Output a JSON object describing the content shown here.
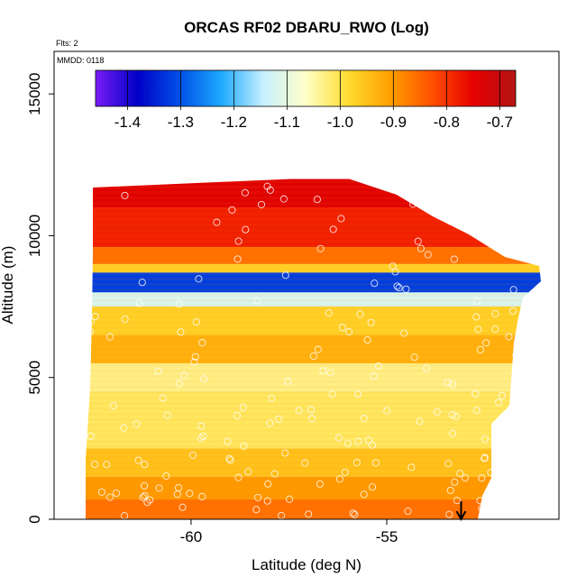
{
  "chart_data": {
    "type": "heatmap",
    "title": "ORCAS RF02 DBARU_RWO (Log)",
    "note_flights": "Flts: 2",
    "note_mmdd": "MMDD: 0118",
    "xlabel": "Latitude (deg N)",
    "ylabel": "Altitude (m)",
    "xlim": [
      -63.5,
      -50.6
    ],
    "ylim": [
      0,
      16500
    ],
    "x_ticks": [
      -60,
      -55
    ],
    "x_tick_labels": [
      "-60",
      "-55"
    ],
    "y_ticks": [
      0,
      5000,
      10000,
      15000
    ],
    "y_tick_labels": [
      "0",
      "5000",
      "10000",
      "15000"
    ],
    "colorbar": {
      "range": [
        -1.46,
        -0.67
      ],
      "ticks": [
        -1.4,
        -1.3,
        -1.2,
        -1.1,
        -1.0,
        -0.9,
        -0.8,
        -0.7
      ],
      "tick_labels": [
        "-1.4",
        "-1.3",
        "-1.2",
        "-1.1",
        "-1.0",
        "-0.9",
        "-0.8",
        "-0.7"
      ],
      "colors": [
        "#7a1cf5",
        "#0000c8",
        "#0050e6",
        "#1eaaff",
        "#c8f0ff",
        "#ffffc8",
        "#ffdc32",
        "#ffa000",
        "#ff5000",
        "#e60000",
        "#b41414"
      ]
    },
    "heatmap_bands": [
      {
        "alt": [
          12000,
          11000
        ],
        "value": -0.74
      },
      {
        "alt": [
          11000,
          9600
        ],
        "value": -0.78
      },
      {
        "alt": [
          9600,
          9000
        ],
        "value": -0.86
      },
      {
        "alt": [
          9000,
          8700
        ],
        "value": -0.97
      },
      {
        "alt": [
          8700,
          8000
        ],
        "value": -1.32
      },
      {
        "alt": [
          8000,
          7500
        ],
        "value": -1.12
      },
      {
        "alt": [
          7500,
          6500
        ],
        "value": -0.97
      },
      {
        "alt": [
          6500,
          5500
        ],
        "value": -0.93
      },
      {
        "alt": [
          5500,
          4500
        ],
        "value": -1.03
      },
      {
        "alt": [
          4500,
          2500
        ],
        "value": -1.01
      },
      {
        "alt": [
          2500,
          1500
        ],
        "value": -0.95
      },
      {
        "alt": [
          1500,
          700
        ],
        "value": -0.9
      },
      {
        "alt": [
          700,
          0
        ],
        "value": -0.86
      }
    ],
    "marker_arrow_x": -53.1
  }
}
